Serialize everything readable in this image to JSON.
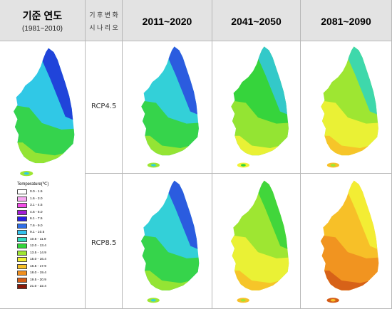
{
  "header": {
    "baseline_title": "기준 연도",
    "baseline_sub": "(1981~2010)",
    "scenario_line1": "기 후 변 화",
    "scenario_line2": "시 나 리 오",
    "period1": "2011~2020",
    "period2": "2041~2050",
    "period3": "2081~2090"
  },
  "scenarios": [
    "RCP4.5",
    "RCP8.5"
  ],
  "legend": {
    "title": "Temperature(℃)",
    "items": [
      {
        "label": "0.0  -  1.5",
        "color": "#ffffff"
      },
      {
        "label": "1.6  -  3.0",
        "color": "#f7a8f2"
      },
      {
        "label": "3.1  -  4.5",
        "color": "#f24ce6"
      },
      {
        "label": "4.6  -  6.0",
        "color": "#a31bd6"
      },
      {
        "label": "6.1  -  7.5",
        "color": "#2a1ee0"
      },
      {
        "label": "7.6  -  9.0",
        "color": "#2f6fe8"
      },
      {
        "label": "9.1  -  10.5",
        "color": "#33c2ee"
      },
      {
        "label": "10.6  -  11.9",
        "color": "#33dcc0"
      },
      {
        "label": "12.0  -  13.4",
        "color": "#33d63a"
      },
      {
        "label": "13.5  -  14.9",
        "color": "#9ee632"
      },
      {
        "label": "15.0  -  16.4",
        "color": "#f2f235"
      },
      {
        "label": "16.5  -  17.9",
        "color": "#f7c028"
      },
      {
        "label": "18.0  -  19.4",
        "color": "#f08f1f"
      },
      {
        "label": "19.5  -  20.9",
        "color": "#d45c17"
      },
      {
        "label": "21.0  -  22.4",
        "color": "#8a1808"
      }
    ]
  },
  "maps": {
    "baseline": {
      "north": "#1f35d8",
      "mid": "#30c8e6",
      "south": "#36d43c",
      "coast": "#9ee632"
    },
    "rcp45_2011": {
      "north": "#2a4fe0",
      "mid": "#33d0d8",
      "south": "#36d43c",
      "coast": "#9ee632"
    },
    "rcp45_2041": {
      "north": "#33c8d8",
      "mid": "#36d43c",
      "south": "#9ee632",
      "coast": "#f2f235"
    },
    "rcp45_2081": {
      "north": "#33d6b8",
      "mid": "#9ee632",
      "south": "#f2f235",
      "coast": "#f7c028"
    },
    "rcp85_2011": {
      "north": "#2a4fe0",
      "mid": "#33d0d8",
      "south": "#36d43c",
      "coast": "#9ee632"
    },
    "rcp85_2041": {
      "north": "#36d43c",
      "mid": "#9ee632",
      "south": "#f2f235",
      "coast": "#f7c028"
    },
    "rcp85_2081": {
      "north": "#f2f235",
      "mid": "#f7c028",
      "south": "#f08f1f",
      "coast": "#d45c17"
    }
  }
}
